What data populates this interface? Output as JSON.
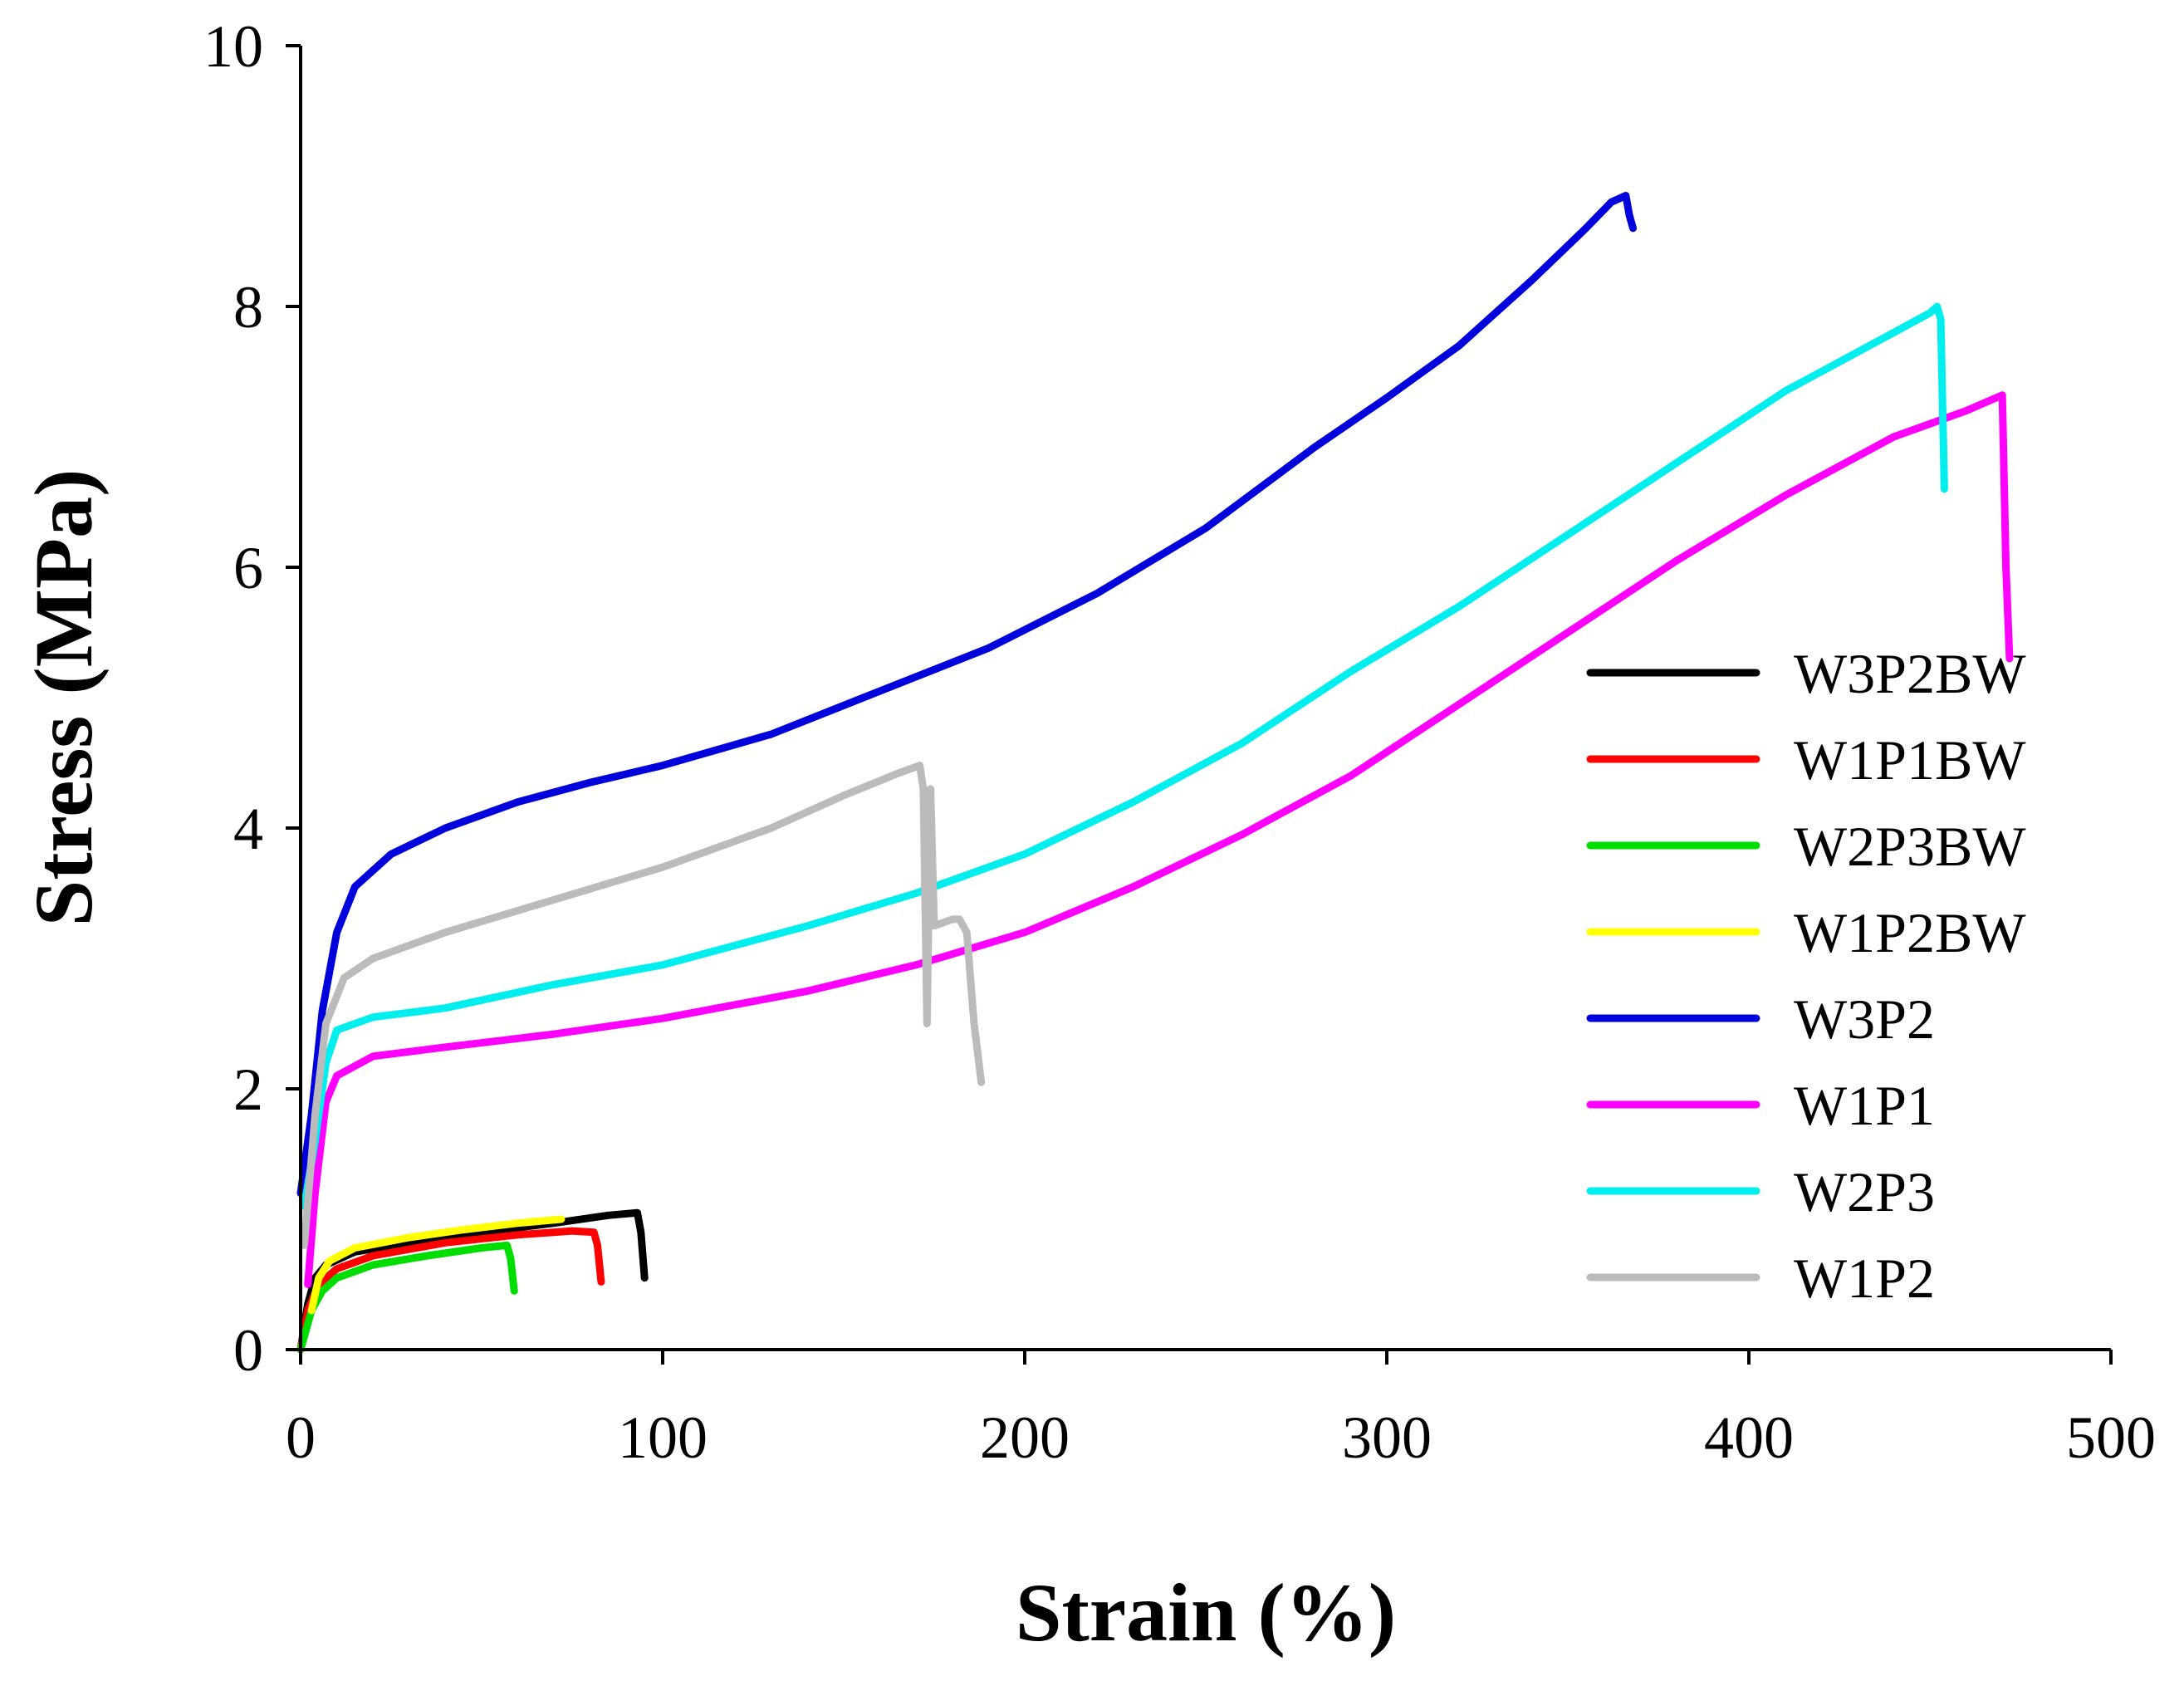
{
  "chart_data": {
    "type": "line",
    "xlabel": "Strain (%)",
    "ylabel": "Stress (MPa)",
    "xlim": [
      0,
      500
    ],
    "ylim": [
      0,
      10
    ],
    "xticks": [
      0,
      100,
      200,
      300,
      400,
      500
    ],
    "yticks": [
      0,
      2,
      4,
      6,
      8,
      10
    ],
    "xtick_labels": [
      "0",
      "100",
      "200",
      "300",
      "400",
      "500"
    ],
    "ytick_labels": [
      "0",
      "2",
      "4",
      "6",
      "8",
      "10"
    ],
    "grid": false,
    "legend_position": "right",
    "series": [
      {
        "name": "W3P2BW",
        "color": "#000000",
        "points": [
          [
            0,
            0
          ],
          [
            2,
            0.35
          ],
          [
            4,
            0.55
          ],
          [
            7,
            0.65
          ],
          [
            15,
            0.75
          ],
          [
            30,
            0.82
          ],
          [
            50,
            0.9
          ],
          [
            70,
            0.97
          ],
          [
            85,
            1.03
          ],
          [
            93,
            1.05
          ],
          [
            94,
            0.9
          ],
          [
            95,
            0.55
          ]
        ]
      },
      {
        "name": "W1P1BW",
        "color": "#ff0000",
        "points": [
          [
            0,
            0
          ],
          [
            2,
            0.3
          ],
          [
            5,
            0.5
          ],
          [
            10,
            0.62
          ],
          [
            20,
            0.72
          ],
          [
            40,
            0.82
          ],
          [
            60,
            0.88
          ],
          [
            75,
            0.91
          ],
          [
            81,
            0.9
          ],
          [
            82,
            0.8
          ],
          [
            83,
            0.52
          ]
        ]
      },
      {
        "name": "W2P3BW",
        "color": "#00dd00",
        "points": [
          [
            0,
            0
          ],
          [
            3,
            0.3
          ],
          [
            6,
            0.45
          ],
          [
            10,
            0.55
          ],
          [
            20,
            0.65
          ],
          [
            35,
            0.72
          ],
          [
            50,
            0.78
          ],
          [
            57,
            0.8
          ],
          [
            58,
            0.7
          ],
          [
            59,
            0.45
          ]
        ]
      },
      {
        "name": "W1P2BW",
        "color": "#ffff00",
        "points": [
          [
            3,
            0.3
          ],
          [
            5,
            0.55
          ],
          [
            8,
            0.68
          ],
          [
            15,
            0.78
          ],
          [
            30,
            0.86
          ],
          [
            45,
            0.92
          ],
          [
            60,
            0.97
          ],
          [
            72,
            1.0
          ]
        ]
      },
      {
        "name": "W3P2",
        "color": "#0000dd",
        "points": [
          [
            0,
            1.2
          ],
          [
            3,
            1.8
          ],
          [
            6,
            2.6
          ],
          [
            10,
            3.2
          ],
          [
            15,
            3.55
          ],
          [
            25,
            3.8
          ],
          [
            40,
            4.0
          ],
          [
            60,
            4.2
          ],
          [
            80,
            4.35
          ],
          [
            100,
            4.48
          ],
          [
            130,
            4.72
          ],
          [
            160,
            5.05
          ],
          [
            190,
            5.38
          ],
          [
            220,
            5.8
          ],
          [
            250,
            6.3
          ],
          [
            280,
            6.92
          ],
          [
            300,
            7.3
          ],
          [
            320,
            7.7
          ],
          [
            340,
            8.2
          ],
          [
            355,
            8.6
          ],
          [
            362,
            8.8
          ],
          [
            366,
            8.85
          ],
          [
            367,
            8.7
          ],
          [
            368,
            8.6
          ]
        ]
      },
      {
        "name": "W1P1",
        "color": "#ff00ff",
        "points": [
          [
            2,
            0.5
          ],
          [
            4,
            1.2
          ],
          [
            7,
            1.9
          ],
          [
            10,
            2.1
          ],
          [
            20,
            2.25
          ],
          [
            40,
            2.32
          ],
          [
            70,
            2.42
          ],
          [
            100,
            2.54
          ],
          [
            140,
            2.75
          ],
          [
            170,
            2.95
          ],
          [
            200,
            3.2
          ],
          [
            230,
            3.55
          ],
          [
            260,
            3.95
          ],
          [
            290,
            4.4
          ],
          [
            320,
            4.95
          ],
          [
            350,
            5.5
          ],
          [
            380,
            6.05
          ],
          [
            410,
            6.55
          ],
          [
            440,
            7.0
          ],
          [
            460,
            7.2
          ],
          [
            470,
            7.32
          ],
          [
            471,
            6.0
          ],
          [
            472,
            5.3
          ]
        ]
      },
      {
        "name": "W2P3",
        "color": "#00eeee",
        "points": [
          [
            1,
            1.1
          ],
          [
            4,
            1.6
          ],
          [
            7,
            2.2
          ],
          [
            10,
            2.45
          ],
          [
            20,
            2.55
          ],
          [
            40,
            2.62
          ],
          [
            70,
            2.8
          ],
          [
            100,
            2.95
          ],
          [
            140,
            3.25
          ],
          [
            170,
            3.5
          ],
          [
            200,
            3.8
          ],
          [
            230,
            4.2
          ],
          [
            260,
            4.65
          ],
          [
            290,
            5.2
          ],
          [
            320,
            5.7
          ],
          [
            350,
            6.25
          ],
          [
            380,
            6.8
          ],
          [
            410,
            7.35
          ],
          [
            440,
            7.8
          ],
          [
            450,
            7.95
          ],
          [
            452,
            8.0
          ],
          [
            453,
            7.9
          ],
          [
            454,
            6.6
          ]
        ]
      },
      {
        "name": "W1P2",
        "color": "#bbbbbb",
        "points": [
          [
            1,
            0.8
          ],
          [
            4,
            1.8
          ],
          [
            7,
            2.5
          ],
          [
            12,
            2.85
          ],
          [
            20,
            3.0
          ],
          [
            40,
            3.2
          ],
          [
            70,
            3.45
          ],
          [
            100,
            3.7
          ],
          [
            130,
            4.0
          ],
          [
            150,
            4.25
          ],
          [
            165,
            4.42
          ],
          [
            171,
            4.48
          ],
          [
            172,
            4.3
          ],
          [
            173,
            2.5
          ],
          [
            174,
            4.3
          ],
          [
            175,
            3.25
          ],
          [
            180,
            3.3
          ],
          [
            182,
            3.3
          ],
          [
            184,
            3.2
          ],
          [
            186,
            2.5
          ],
          [
            188,
            2.05
          ]
        ]
      }
    ]
  }
}
